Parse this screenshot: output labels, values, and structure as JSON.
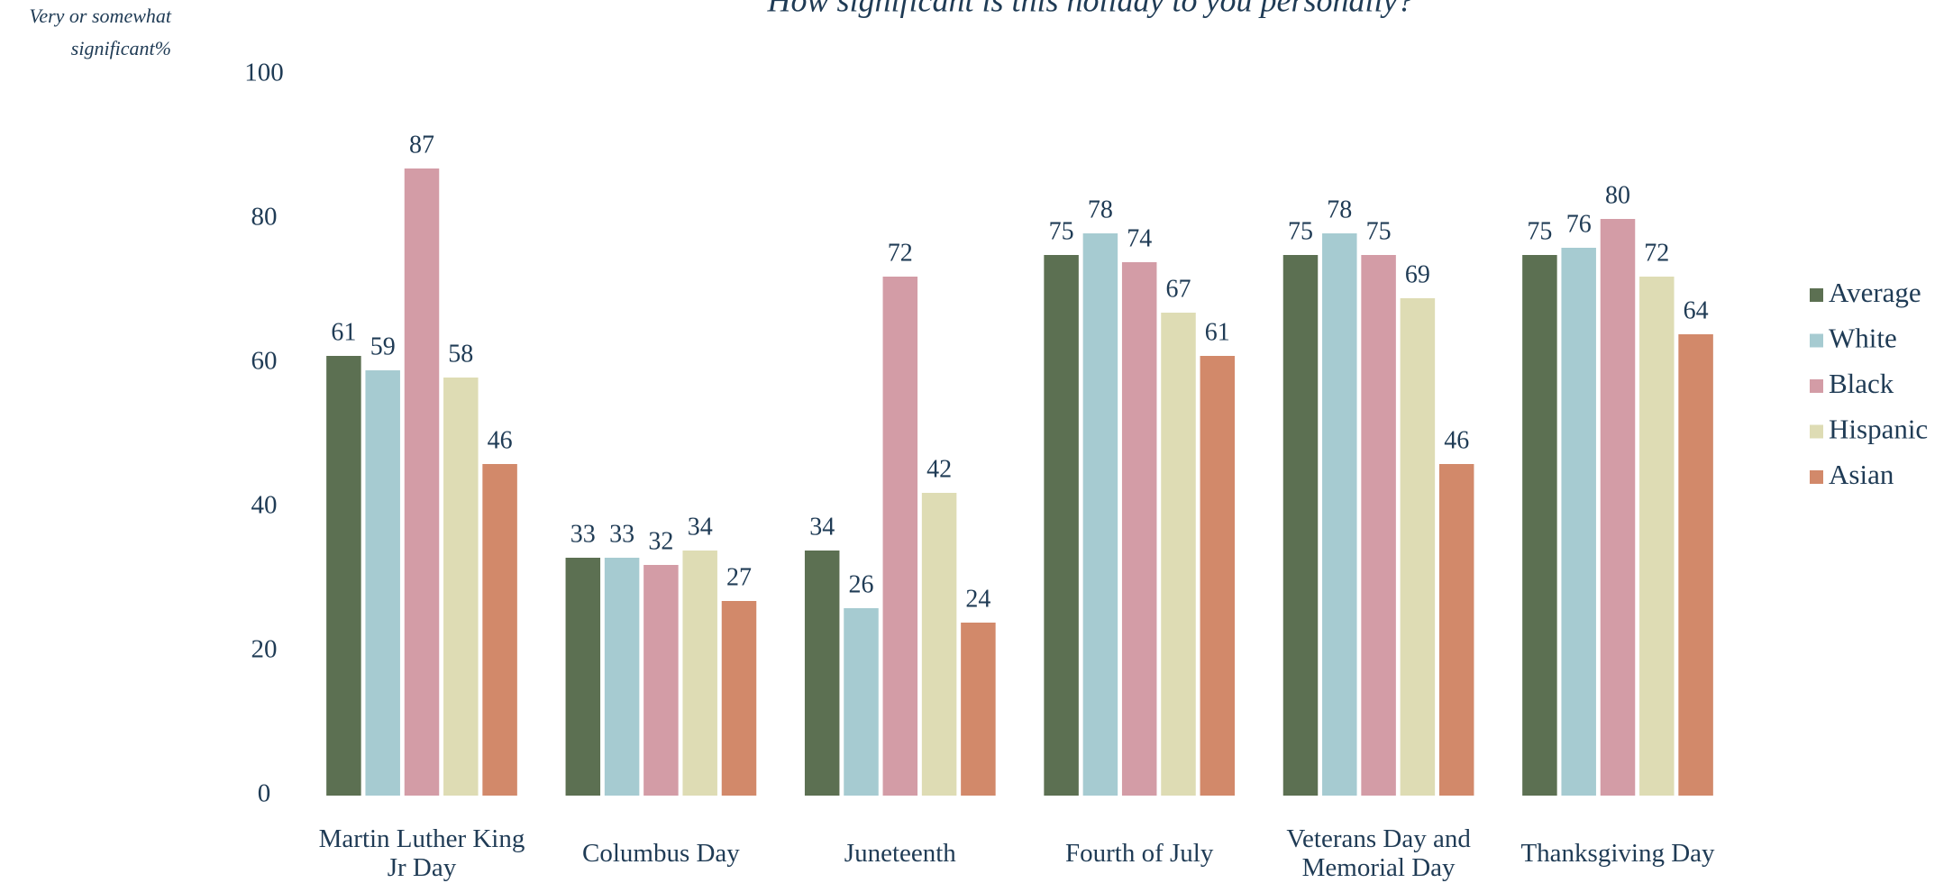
{
  "chart_data": {
    "type": "bar",
    "title": "How significant is this holiday to you personally?",
    "y_label": "Very or somewhat significant%",
    "categories": [
      "Martin Luther King Jr Day",
      "Columbus Day",
      "Juneteenth",
      "Fourth of July",
      "Veterans Day and Memorial Day",
      "Thanksgiving Day"
    ],
    "series": [
      {
        "name": "Average",
        "color": "#5c7052",
        "values": [
          61,
          33,
          34,
          75,
          75,
          75
        ]
      },
      {
        "name": "White",
        "color": "#a6cbd1",
        "values": [
          59,
          33,
          26,
          78,
          78,
          76
        ]
      },
      {
        "name": "Black",
        "color": "#d39ca6",
        "values": [
          87,
          32,
          72,
          74,
          75,
          80
        ]
      },
      {
        "name": "Hispanic",
        "color": "#dedcb4",
        "values": [
          58,
          34,
          42,
          67,
          69,
          72
        ]
      },
      {
        "name": "Asian",
        "color": "#d2896a",
        "values": [
          46,
          27,
          24,
          61,
          46,
          64
        ]
      }
    ],
    "ylim": [
      0,
      100
    ],
    "yticks": [
      0,
      20,
      40,
      60,
      80,
      100
    ],
    "grid": false,
    "legend": "right"
  }
}
